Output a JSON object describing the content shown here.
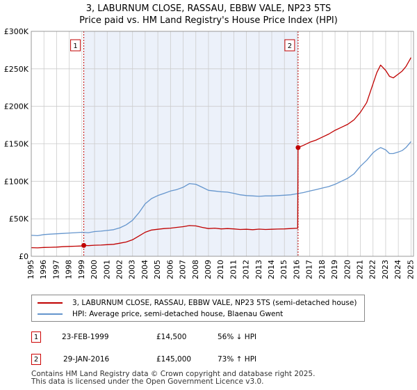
{
  "header": {
    "title_line1": "3, LABURNUM CLOSE, RASSAU, EBBW VALE, NP23 5TS",
    "title_line2": "Price paid vs. HM Land Registry's House Price Index (HPI)"
  },
  "legend": {
    "property_label": "3, LABURNUM CLOSE, RASSAU, EBBW VALE, NP23 5TS (semi-detached house)",
    "hpi_label": "HPI: Average price, semi-detached house, Blaenau Gwent"
  },
  "transactions": [
    {
      "badge": "1",
      "date": "23-FEB-1999",
      "price": "£14,500",
      "hpi_change": "56% ↓ HPI"
    },
    {
      "badge": "2",
      "date": "29-JAN-2016",
      "price": "£145,000",
      "hpi_change": "73% ↑ HPI"
    }
  ],
  "footer": {
    "line1": "Contains HM Land Registry data © Crown copyright and database right 2025.",
    "line2": "This data is licensed under the Open Government Licence v3.0."
  },
  "colors": {
    "property": "#c00000",
    "hpi": "#6495cd",
    "shade": "#dde6f5",
    "grid": "#cccccc"
  },
  "chart_data": {
    "type": "line",
    "title": "3, LABURNUM CLOSE, RASSAU, EBBW VALE, NP23 5TS",
    "subtitle": "Price paid vs. HM Land Registry's House Price Index (HPI)",
    "xlabel": "",
    "ylabel": "",
    "xlim": [
      1995,
      2025.2
    ],
    "ylim": [
      0,
      300000
    ],
    "x_ticks": [
      1995,
      1996,
      1997,
      1998,
      1999,
      2000,
      2001,
      2002,
      2003,
      2004,
      2005,
      2006,
      2007,
      2008,
      2009,
      2010,
      2011,
      2012,
      2013,
      2014,
      2015,
      2016,
      2017,
      2018,
      2019,
      2020,
      2021,
      2022,
      2023,
      2024,
      2025
    ],
    "y_ticks": [
      0,
      50000,
      100000,
      150000,
      200000,
      250000,
      300000
    ],
    "y_tick_labels": [
      "£0",
      "£50K",
      "£100K",
      "£150K",
      "£200K",
      "£250K",
      "£300K"
    ],
    "grid": true,
    "shaded_ranges": [
      [
        1999.15,
        2016.08
      ]
    ],
    "sale_markers": [
      {
        "label": "1",
        "x": 1999.15,
        "y": 14500
      },
      {
        "label": "2",
        "x": 2016.08,
        "y": 145000
      }
    ],
    "series": [
      {
        "name": "3, LABURNUM CLOSE, RASSAU, EBBW VALE, NP23 5TS (semi-detached house)",
        "x": [
          1995,
          1995.5,
          1996,
          1996.5,
          1997,
          1997.5,
          1998,
          1998.5,
          1999,
          1999.15,
          1999.5,
          2000,
          2000.5,
          2001,
          2001.5,
          2002,
          2002.5,
          2003,
          2003.5,
          2004,
          2004.5,
          2005,
          2005.5,
          2006,
          2006.5,
          2007,
          2007.5,
          2008,
          2008.5,
          2009,
          2009.5,
          2010,
          2010.5,
          2011,
          2011.5,
          2012,
          2012.5,
          2013,
          2013.5,
          2014,
          2014.5,
          2015,
          2015.5,
          2016.05,
          2016.08,
          2016.5,
          2017,
          2017.5,
          2018,
          2018.5,
          2019,
          2019.5,
          2020,
          2020.5,
          2021,
          2021.5,
          2022,
          2022.3,
          2022.6,
          2023,
          2023.3,
          2023.6,
          2024,
          2024.3,
          2024.6,
          2025
        ],
        "values": [
          11500,
          11200,
          11800,
          12000,
          12300,
          12800,
          13200,
          13500,
          13700,
          14500,
          14200,
          14800,
          15000,
          15500,
          16000,
          17500,
          19000,
          22000,
          27000,
          32000,
          35000,
          36000,
          37000,
          37500,
          38500,
          39500,
          41000,
          40500,
          38500,
          37000,
          37500,
          36500,
          37000,
          36500,
          35800,
          36000,
          35500,
          36200,
          35800,
          36000,
          36300,
          36500,
          37000,
          37500,
          145000,
          148000,
          152000,
          155000,
          159000,
          163000,
          168000,
          172000,
          176000,
          182000,
          192000,
          205000,
          230000,
          245000,
          255000,
          248000,
          240000,
          238000,
          243000,
          247000,
          253000,
          265000
        ]
      },
      {
        "name": "HPI: Average price, semi-detached house, Blaenau Gwent",
        "x": [
          1995,
          1995.5,
          1996,
          1996.5,
          1997,
          1997.5,
          1998,
          1998.5,
          1999,
          1999.5,
          2000,
          2000.5,
          2001,
          2001.5,
          2002,
          2002.5,
          2003,
          2003.5,
          2004,
          2004.5,
          2005,
          2005.5,
          2006,
          2006.5,
          2007,
          2007.5,
          2008,
          2008.5,
          2009,
          2009.5,
          2010,
          2010.5,
          2011,
          2011.5,
          2012,
          2012.5,
          2013,
          2013.5,
          2014,
          2014.5,
          2015,
          2015.5,
          2016,
          2016.5,
          2017,
          2017.5,
          2018,
          2018.5,
          2019,
          2019.5,
          2020,
          2020.5,
          2021,
          2021.5,
          2022,
          2022.3,
          2022.6,
          2023,
          2023.3,
          2023.6,
          2024,
          2024.3,
          2024.6,
          2025
        ],
        "values": [
          28000,
          27500,
          29000,
          29500,
          30000,
          30500,
          31000,
          31500,
          32000,
          31500,
          33000,
          33500,
          34500,
          35500,
          38000,
          42000,
          48000,
          58000,
          70000,
          77000,
          81000,
          84000,
          87000,
          89000,
          92000,
          97000,
          96000,
          92000,
          88000,
          87000,
          86000,
          85500,
          84000,
          82000,
          81000,
          80500,
          80000,
          80500,
          80500,
          81000,
          81500,
          82000,
          83500,
          85000,
          87000,
          89000,
          91000,
          93000,
          96000,
          100000,
          104000,
          110000,
          120000,
          128000,
          138000,
          142000,
          145000,
          142000,
          137000,
          137000,
          139000,
          141000,
          145000,
          153000
        ]
      }
    ]
  }
}
